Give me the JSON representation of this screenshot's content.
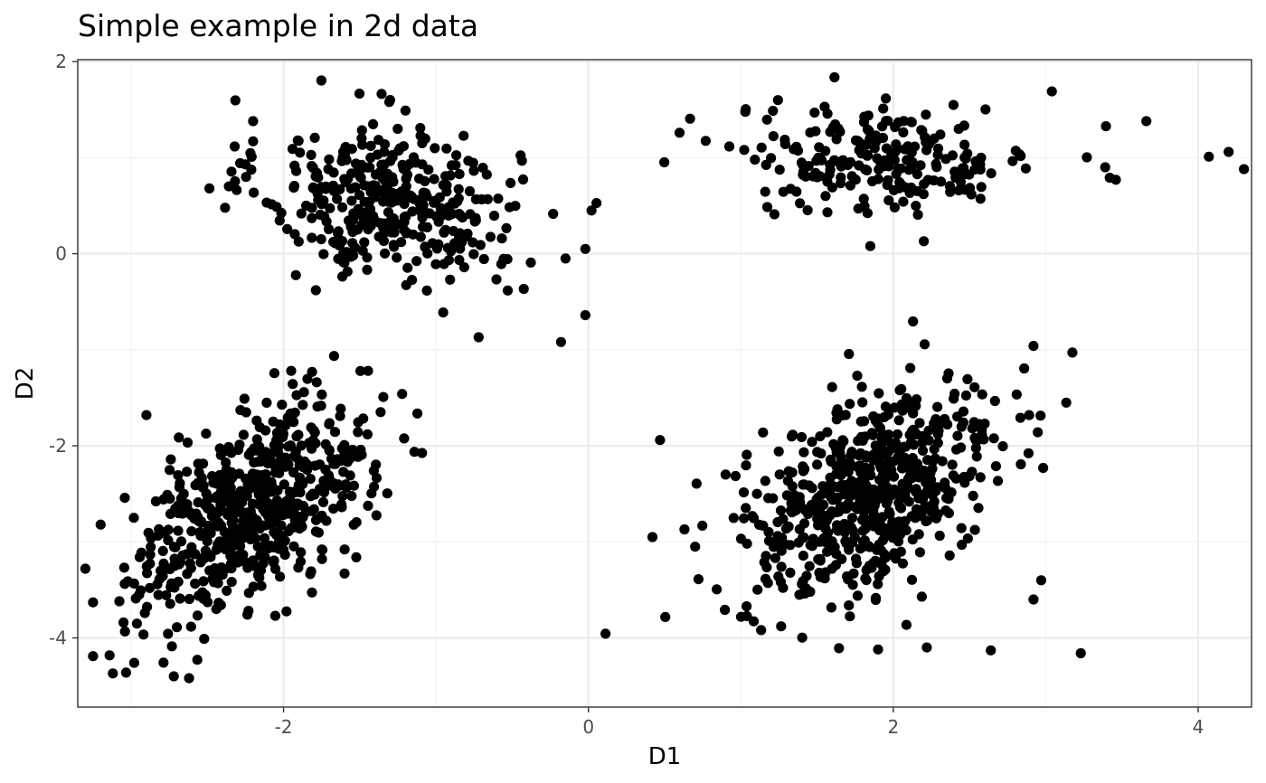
{
  "chart_data": {
    "type": "scatter",
    "title": "Simple example in 2d data",
    "xlabel": "D1",
    "ylabel": "D2",
    "xlim": [
      -3.35,
      4.35
    ],
    "ylim": [
      -4.72,
      2.02
    ],
    "x_major_ticks": [
      -2,
      0,
      2,
      4
    ],
    "x_tick_labels": [
      "-2",
      "0",
      "2",
      "4"
    ],
    "y_major_ticks": [
      -4,
      -2,
      0,
      2
    ],
    "y_tick_labels": [
      "-4",
      "-2",
      "0",
      "2"
    ],
    "x_minor_ticks": [
      -3,
      -1,
      1,
      3
    ],
    "y_minor_ticks": [
      -3,
      -1,
      1
    ],
    "grid": true,
    "legend": "none",
    "point_color": "#000000",
    "clusters": [
      {
        "center": [
          -1.3,
          0.55
        ],
        "sd": [
          0.42,
          0.42
        ],
        "rho": -0.25,
        "n": 380
      },
      {
        "center": [
          1.95,
          1.0
        ],
        "sd": [
          0.5,
          0.28
        ],
        "rho": 0.05,
        "n": 220
      },
      {
        "center": [
          -2.2,
          -2.65
        ],
        "sd": [
          0.38,
          0.55
        ],
        "rho": 0.55,
        "n": 600
      },
      {
        "center": [
          1.85,
          -2.5
        ],
        "sd": [
          0.42,
          0.55
        ],
        "rho": 0.45,
        "n": 620
      }
    ],
    "outliers": [
      [
        -2.2,
        1.38
      ],
      [
        -2.2,
        1.17
      ],
      [
        -2.25,
        0.93
      ],
      [
        -0.18,
        -0.92
      ],
      [
        0.02,
        0.45
      ],
      [
        -0.02,
        0.05
      ],
      [
        -0.02,
        -0.64
      ],
      [
        -0.72,
        -0.87
      ],
      [
        1.22,
        0.41
      ],
      [
        2.2,
        0.13
      ],
      [
        3.04,
        1.69
      ],
      [
        3.66,
        1.38
      ],
      [
        4.07,
        1.01
      ],
      [
        4.2,
        1.06
      ],
      [
        4.3,
        0.88
      ],
      [
        3.39,
        0.9
      ],
      [
        3.46,
        0.77
      ],
      [
        2.92,
        -0.96
      ],
      [
        0.47,
        -1.94
      ],
      [
        0.42,
        -2.95
      ],
      [
        0.63,
        -2.87
      ],
      [
        0.7,
        -3.05
      ],
      [
        3.23,
        -4.16
      ],
      [
        2.64,
        -4.13
      ],
      [
        2.97,
        -3.4
      ],
      [
        2.92,
        -3.6
      ],
      [
        -3.2,
        -2.82
      ],
      [
        -3.3,
        -3.28
      ],
      [
        -3.25,
        -3.63
      ],
      [
        -3.25,
        -4.19
      ],
      [
        -3.12,
        -4.37
      ],
      [
        -2.72,
        -4.4
      ],
      [
        -2.62,
        -4.42
      ],
      [
        -2.9,
        -1.68
      ],
      [
        -3.05,
        -3.84
      ],
      [
        -2.98,
        -4.26
      ],
      [
        -1.95,
        -1.22
      ],
      [
        -1.62,
        -2.61
      ],
      [
        -1.6,
        -3.33
      ],
      [
        -1.2,
        1.49
      ],
      [
        -0.15,
        -0.05
      ],
      [
        0.9,
        -2.3
      ],
      [
        2.22,
        -4.1
      ],
      [
        1.9,
        -4.12
      ]
    ]
  }
}
